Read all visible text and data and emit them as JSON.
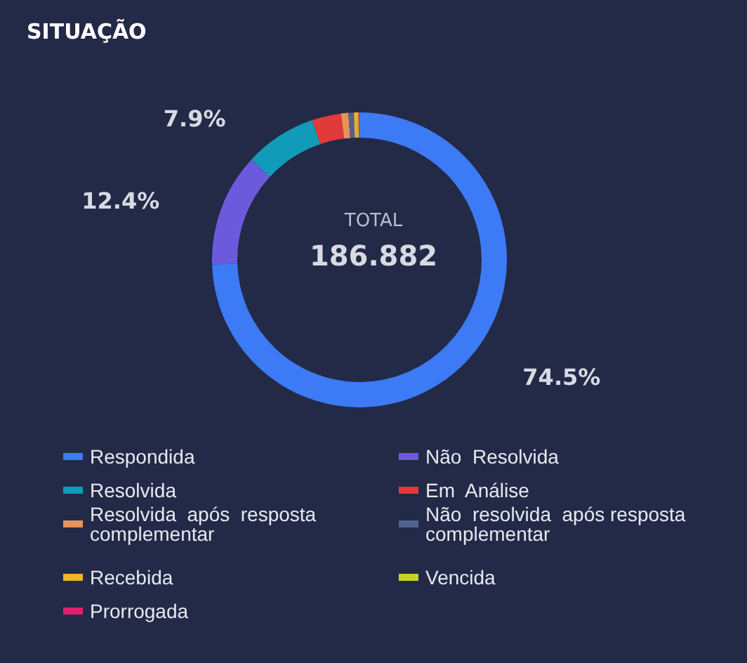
{
  "chart_data": {
    "type": "donut",
    "title": "SITUAÇÃO",
    "categories": [
      "Respondida",
      "Não  Resolvida",
      "Resolvida",
      "Em  Análise",
      "Resolvida  após  resposta complementar",
      "Não  resolvida  após resposta  complementar",
      "Recebida",
      "Vencida",
      "Prorrogada"
    ],
    "values": [
      74.5,
      12.4,
      7.9,
      3.2,
      0.8,
      0.6,
      0.3,
      0.2,
      0.1
    ],
    "colors": [
      "#3d7af5",
      "#6b5bdc",
      "#129ab9",
      "#e03a3a",
      "#e8925a",
      "#50628f",
      "#f0b428",
      "#c8d42a",
      "#e0206a"
    ],
    "value_labels": [
      "74.5%",
      "12.4%",
      "7.9%",
      null,
      null,
      null,
      null,
      null,
      null
    ],
    "annotations": [
      "TOTAL",
      "186.882"
    ],
    "legend": "bottom"
  }
}
